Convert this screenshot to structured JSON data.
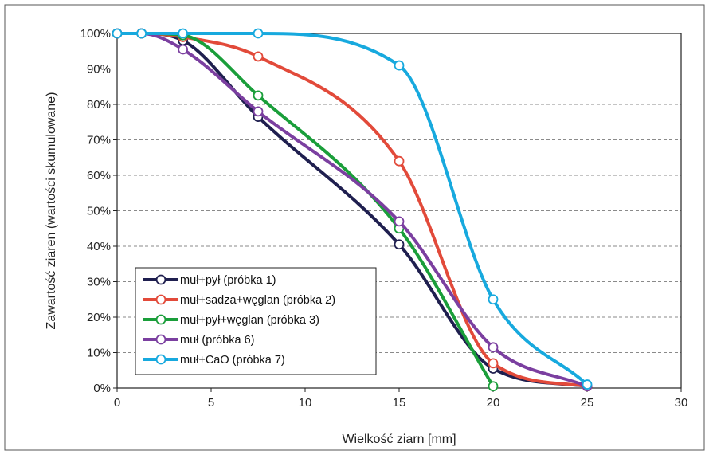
{
  "chart_data": {
    "type": "line",
    "xlabel": "Wielkość ziarn [mm]",
    "ylabel": "Zawartość ziaren (wartości skumulowane)",
    "xlim": [
      0,
      30
    ],
    "ylim": [
      0,
      100
    ],
    "x_ticks": [
      0,
      5,
      10,
      15,
      20,
      25,
      30
    ],
    "x_tick_labels": [
      "0",
      "5",
      "10",
      "15",
      "20",
      "25",
      "30"
    ],
    "y_ticks": [
      0,
      10,
      20,
      30,
      40,
      50,
      60,
      70,
      80,
      90,
      100
    ],
    "y_tick_labels": [
      "0%",
      "10%",
      "20%",
      "30%",
      "40%",
      "50%",
      "60%",
      "70%",
      "80%",
      "90%",
      "100%"
    ],
    "grid": "horizontal dashed",
    "legend_position": "bottom-left",
    "series": [
      {
        "name": "muł+pył (próbka 1)",
        "color": "#1f1f4f",
        "points": [
          [
            0,
            100
          ],
          [
            1.3,
            100
          ],
          [
            3.5,
            98
          ],
          [
            7.5,
            76.5
          ],
          [
            15,
            40.5
          ],
          [
            20,
            5.5
          ],
          [
            25,
            0.5
          ]
        ]
      },
      {
        "name": "muł+sadza+węglan (próbka 2)",
        "color": "#e24a3a",
        "points": [
          [
            0,
            100
          ],
          [
            1.3,
            100
          ],
          [
            3.5,
            99
          ],
          [
            7.5,
            93.5
          ],
          [
            15,
            64
          ],
          [
            20,
            7
          ],
          [
            25,
            0.5
          ]
        ]
      },
      {
        "name": "muł+pył+węglan (próbka 3)",
        "color": "#1a9e3a",
        "points": [
          [
            0,
            100
          ],
          [
            1.3,
            100
          ],
          [
            3.5,
            99.5
          ],
          [
            7.5,
            82.5
          ],
          [
            15,
            45
          ],
          [
            20,
            0.5
          ]
        ]
      },
      {
        "name": "muł (próbka 6)",
        "color": "#7b3fa0",
        "points": [
          [
            0,
            100
          ],
          [
            1.3,
            100
          ],
          [
            3.5,
            95.5
          ],
          [
            7.5,
            78
          ],
          [
            15,
            47
          ],
          [
            20,
            11.5
          ],
          [
            25,
            0.5
          ]
        ]
      },
      {
        "name": "muł+CaO (próbka 7)",
        "color": "#17a9de",
        "points": [
          [
            0,
            100
          ],
          [
            1.3,
            100
          ],
          [
            3.5,
            100
          ],
          [
            7.5,
            100
          ],
          [
            15,
            91
          ],
          [
            20,
            25
          ],
          [
            25,
            1
          ]
        ]
      }
    ]
  }
}
